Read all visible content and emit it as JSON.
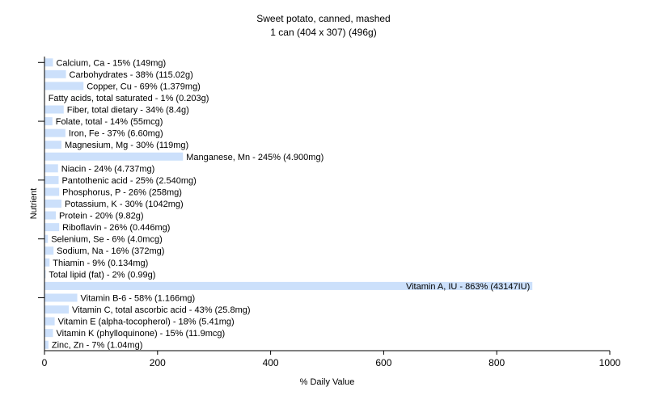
{
  "chart_data": {
    "type": "bar",
    "orientation": "horizontal",
    "title": "Sweet potato, canned, mashed",
    "subtitle": "1 can (404 x 307) (496g)",
    "xlabel": "% Daily Value",
    "ylabel": "Nutrient",
    "xlim": [
      0,
      1000
    ],
    "xticks": [
      0,
      200,
      400,
      600,
      800,
      1000
    ],
    "grid": false,
    "bar_color": "#cce0fb",
    "categories": [
      "Calcium, Ca",
      "Carbohydrates",
      "Copper, Cu",
      "Fatty acids, total saturated",
      "Fiber, total dietary",
      "Folate, total",
      "Iron, Fe",
      "Magnesium, Mg",
      "Manganese, Mn",
      "Niacin",
      "Pantothenic acid",
      "Phosphorus, P",
      "Potassium, K",
      "Protein",
      "Riboflavin",
      "Selenium, Se",
      "Sodium, Na",
      "Thiamin",
      "Total lipid (fat)",
      "Vitamin A, IU",
      "Vitamin B-6",
      "Vitamin C, total ascorbic acid",
      "Vitamin E (alpha-tocopherol)",
      "Vitamin K (phylloquinone)",
      "Zinc, Zn"
    ],
    "values": [
      15,
      38,
      69,
      1,
      34,
      14,
      37,
      30,
      245,
      24,
      25,
      26,
      30,
      20,
      26,
      6,
      16,
      9,
      2,
      863,
      58,
      43,
      18,
      15,
      7
    ],
    "labels": [
      "Calcium, Ca - 15% (149mg)",
      "Carbohydrates - 38% (115.02g)",
      "Copper, Cu - 69% (1.379mg)",
      "Fatty acids, total saturated - 1% (0.203g)",
      "Fiber, total dietary - 34% (8.4g)",
      "Folate, total - 14% (55mcg)",
      "Iron, Fe - 37% (6.60mg)",
      "Magnesium, Mg - 30% (119mg)",
      "Manganese, Mn - 245% (4.900mg)",
      "Niacin - 24% (4.737mg)",
      "Pantothenic acid - 25% (2.540mg)",
      "Phosphorus, P - 26% (258mg)",
      "Potassium, K - 30% (1042mg)",
      "Protein - 20% (9.82g)",
      "Riboflavin - 26% (0.446mg)",
      "Selenium, Se - 6% (4.0mcg)",
      "Sodium, Na - 16% (372mg)",
      "Thiamin - 9% (0.134mg)",
      "Total lipid (fat) - 2% (0.99g)",
      "Vitamin A, IU - 863% (43147IU)",
      "Vitamin B-6 - 58% (1.166mg)",
      "Vitamin C, total ascorbic acid - 43% (25.8mg)",
      "Vitamin E (alpha-tocopherol) - 18% (5.41mg)",
      "Vitamin K (phylloquinone) - 15% (11.9mcg)",
      "Zinc, Zn - 7% (1.04mg)"
    ]
  }
}
